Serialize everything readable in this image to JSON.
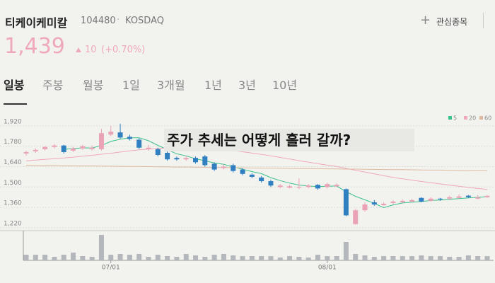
{
  "header": {
    "name": "티케이케미칼",
    "code": "104480",
    "market": "KOSDAQ",
    "watch_button": "관심종목"
  },
  "quote": {
    "price": "1,439",
    "change": "10",
    "change_pct": "(+0.70%)"
  },
  "tabs": [
    "일봉",
    "주봉",
    "월봉",
    "1일",
    "3개월",
    "1년",
    "3년",
    "10년"
  ],
  "overlay_text": "주가 추세는 어떻게 흘러 갈까?",
  "chart_data": {
    "type": "candlestick",
    "categories": [
      null,
      null,
      null,
      null,
      null,
      null,
      null,
      null,
      null,
      "07/01",
      null,
      null,
      null,
      null,
      null,
      null,
      null,
      null,
      null,
      null,
      null,
      null,
      null,
      null,
      null,
      null,
      null,
      null,
      null,
      null,
      null,
      null,
      "08/01",
      null,
      null,
      null,
      null,
      null,
      null,
      null,
      null,
      null,
      null,
      null,
      null,
      null,
      null,
      null,
      null,
      null
    ],
    "open": [
      1730,
      1745,
      1760,
      1775,
      1785,
      1750,
      1765,
      1760,
      1760,
      1860,
      1875,
      1845,
      1825,
      1760,
      1760,
      1735,
      1700,
      1690,
      1700,
      1710,
      1660,
      1630,
      1650,
      1620,
      1585,
      1565,
      1540,
      1500,
      1495,
      1495,
      1500,
      1515,
      1500,
      1505,
      1485,
      1245,
      1340,
      1395,
      1375,
      1390,
      1395,
      1400,
      1425,
      1405,
      1420,
      1420,
      1425,
      1440,
      1420,
      1430
    ],
    "high": [
      1750,
      1765,
      1780,
      1795,
      1790,
      1775,
      1790,
      1785,
      1900,
      1920,
      1935,
      1860,
      1835,
      1790,
      1770,
      1745,
      1710,
      1715,
      1710,
      1720,
      1670,
      1655,
      1660,
      1630,
      1595,
      1575,
      1550,
      1520,
      1515,
      1560,
      1520,
      1520,
      1530,
      1525,
      1490,
      1350,
      1395,
      1410,
      1395,
      1410,
      1415,
      1420,
      1430,
      1430,
      1425,
      1440,
      1450,
      1445,
      1445,
      1445
    ],
    "low": [
      1715,
      1735,
      1750,
      1765,
      1730,
      1740,
      1755,
      1750,
      1750,
      1850,
      1830,
      1820,
      1760,
      1750,
      1710,
      1680,
      1680,
      1680,
      1660,
      1640,
      1610,
      1620,
      1600,
      1580,
      1560,
      1530,
      1500,
      1490,
      1490,
      1485,
      1490,
      1480,
      1490,
      1500,
      1300,
      1240,
      1330,
      1370,
      1370,
      1380,
      1390,
      1395,
      1395,
      1400,
      1405,
      1410,
      1420,
      1425,
      1415,
      1425
    ],
    "close": [
      1740,
      1755,
      1775,
      1785,
      1740,
      1765,
      1780,
      1770,
      1870,
      1880,
      1840,
      1830,
      1770,
      1770,
      1720,
      1690,
      1690,
      1700,
      1670,
      1650,
      1620,
      1640,
      1610,
      1590,
      1570,
      1540,
      1510,
      1510,
      1505,
      1500,
      1510,
      1490,
      1520,
      1515,
      1305,
      1340,
      1380,
      1380,
      1385,
      1400,
      1405,
      1410,
      1400,
      1420,
      1415,
      1430,
      1435,
      1430,
      1429,
      1439
    ],
    "up_color": "#eaa3b6",
    "down_color": "#2f7fc1",
    "series": [
      {
        "name": "5",
        "color": "#3cc08c",
        "values": [
          null,
          null,
          null,
          null,
          1759,
          1764,
          1769,
          1768,
          1785,
          1813,
          1828,
          1838,
          1838,
          1818,
          1786,
          1756,
          1728,
          1714,
          1694,
          1680,
          1666,
          1656,
          1638,
          1622,
          1606,
          1592,
          1564,
          1544,
          1527,
          1513,
          1507,
          1503,
          1505,
          1507,
          1468,
          1436,
          1412,
          1388,
          1358,
          1377,
          1390,
          1396,
          1400,
          1407,
          1410,
          1416,
          1420,
          1425,
          1429,
          1434
        ]
      },
      {
        "name": "20",
        "color": "#f0a8bc",
        "values": [
          1680,
          1685,
          1690,
          1695,
          1700,
          1705,
          1712,
          1718,
          1725,
          1732,
          1740,
          1748,
          1755,
          1760,
          1765,
          1768,
          1770,
          1772,
          1770,
          1768,
          1762,
          1757,
          1750,
          1742,
          1733,
          1724,
          1714,
          1703,
          1692,
          1681,
          1670,
          1660,
          1650,
          1641,
          1628,
          1615,
          1602,
          1590,
          1578,
          1566,
          1556,
          1547,
          1538,
          1530,
          1521,
          1513,
          1505,
          1497,
          1490,
          1483
        ]
      },
      {
        "name": "60",
        "color": "#e0b8a0",
        "values": [
          1650,
          1649,
          1648,
          1648,
          1647,
          1646,
          1645,
          1645,
          1644,
          1643,
          1642,
          1641,
          1641,
          1640,
          1639,
          1638,
          1637,
          1637,
          1636,
          1635,
          1634,
          1634,
          1633,
          1632,
          1631,
          1630,
          1630,
          1629,
          1628,
          1627,
          1627,
          1626,
          1625,
          1624,
          1623,
          1623,
          1622,
          1621,
          1620,
          1619,
          1619,
          1618,
          1617,
          1616,
          1616,
          1615,
          1614,
          1613,
          1612,
          1612
        ]
      }
    ],
    "volume": {
      "color": "#b4b8bc",
      "ylim": [
        0,
        40
      ],
      "values": [
        8,
        8,
        8,
        5,
        8,
        11,
        6,
        5,
        36,
        8,
        9,
        8,
        9,
        5,
        8,
        6,
        5,
        9,
        7,
        5,
        8,
        9,
        7,
        6,
        6,
        6,
        6,
        4,
        6,
        5,
        4,
        8,
        6,
        6,
        26,
        9,
        7,
        5,
        6,
        6,
        6,
        6,
        7,
        6,
        6,
        5,
        5,
        7,
        6,
        6
      ]
    },
    "ylim": [
      1205,
      2007
    ],
    "yticks": [
      {
        "value": 1920,
        "label": "1,920"
      },
      {
        "value": 1780,
        "label": "1,780"
      },
      {
        "value": 1640,
        "label": "1,640"
      },
      {
        "value": 1500,
        "label": "1,500"
      },
      {
        "value": 1360,
        "label": "1,360"
      },
      {
        "value": 1220,
        "label": "1,220"
      }
    ],
    "grid": true
  }
}
